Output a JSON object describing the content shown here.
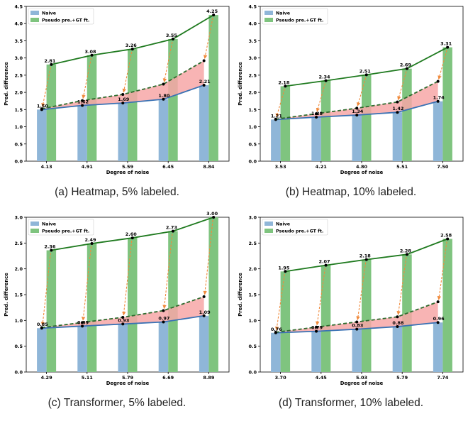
{
  "colors": {
    "naive_bar": "#8fb6d8",
    "pseudo_bar": "#7fc47f",
    "naive_line": "#3a72b4",
    "pseudo_line": "#1f7a1f",
    "dashed_line": "#2e6b2e",
    "gap_fill": "#f7a7a7",
    "arrow": "#f08a3c"
  },
  "chart_data": [
    {
      "type": "bar",
      "caption": "(a) Heatmap, 5% labeled.",
      "xlabel": "Degree of noise",
      "ylabel": "Pred. difference",
      "ylim": [
        0,
        4.5
      ],
      "yticks": [
        "0.0",
        "0.5",
        "1.0",
        "1.5",
        "2.0",
        "2.5",
        "3.0",
        "3.5",
        "4.0",
        "4.5"
      ],
      "categories": [
        "4.13",
        "4.91",
        "5.59",
        "6.45",
        "8.84"
      ],
      "legend_position": "top-left",
      "series": [
        {
          "name": "Naive",
          "values": [
            1.5,
            1.62,
            1.69,
            1.8,
            2.21
          ],
          "labels": [
            "1.50",
            "1.62",
            "1.69",
            "1.80",
            "2.21"
          ]
        },
        {
          "name": "Pseudo pre.+GT ft.",
          "values": [
            2.81,
            3.08,
            3.26,
            3.55,
            4.25
          ],
          "labels": [
            "2.81",
            "3.08",
            "3.26",
            "3.55",
            "4.25"
          ]
        }
      ],
      "dashed_values": [
        1.52,
        1.76,
        1.94,
        2.24,
        2.92
      ]
    },
    {
      "type": "bar",
      "caption": "(b) Heatmap, 10% labeled.",
      "xlabel": "Degree of noise",
      "ylabel": "Pred. difference",
      "ylim": [
        0,
        4.5
      ],
      "yticks": [
        "0.0",
        "0.5",
        "1.0",
        "1.5",
        "2.0",
        "2.5",
        "3.0",
        "3.5",
        "4.0",
        "4.5"
      ],
      "categories": [
        "3.53",
        "4.21",
        "4.80",
        "5.51",
        "7.50"
      ],
      "legend_position": "top-left",
      "series": [
        {
          "name": "Naive",
          "values": [
            1.21,
            1.28,
            1.34,
            1.42,
            1.74
          ],
          "labels": [
            "1.21",
            "1.28",
            "1.34",
            "1.42",
            "1.74"
          ]
        },
        {
          "name": "Pseudo pre.+GT ft.",
          "values": [
            2.18,
            2.34,
            2.51,
            2.69,
            3.31
          ],
          "labels": [
            "2.18",
            "2.34",
            "2.51",
            "2.69",
            "3.31"
          ]
        }
      ],
      "dashed_values": [
        1.22,
        1.38,
        1.54,
        1.72,
        2.32
      ]
    },
    {
      "type": "bar",
      "caption": "(c) Transformer, 5% labeled.",
      "xlabel": "Degree of noise",
      "ylabel": "Pred. difference",
      "ylim": [
        0,
        3.0
      ],
      "yticks": [
        "0.0",
        "0.5",
        "1.0",
        "1.5",
        "2.0",
        "2.5",
        "3.0"
      ],
      "categories": [
        "4.29",
        "5.11",
        "5.79",
        "6.69",
        "8.89"
      ],
      "legend_position": "top-left",
      "series": [
        {
          "name": "Naive",
          "values": [
            0.85,
            0.89,
            0.93,
            0.97,
            1.09
          ],
          "labels": [
            "0.85",
            "0.89",
            "0.93",
            "0.97",
            "1.09"
          ]
        },
        {
          "name": "Pseudo pre.+GT ft.",
          "values": [
            2.36,
            2.49,
            2.6,
            2.73,
            3.0
          ],
          "labels": [
            "2.36",
            "2.49",
            "2.60",
            "2.73",
            "3.00"
          ]
        }
      ],
      "dashed_values": [
        0.86,
        0.96,
        1.06,
        1.19,
        1.46
      ]
    },
    {
      "type": "bar",
      "caption": "(d) Transformer, 10% labeled.",
      "xlabel": "Degree of noise",
      "ylabel": "Pred. difference",
      "ylim": [
        0,
        3.0
      ],
      "yticks": [
        "0.0",
        "0.5",
        "1.0",
        "1.5",
        "2.0",
        "2.5",
        "3.0"
      ],
      "categories": [
        "3.70",
        "4.45",
        "5.03",
        "5.79",
        "7.74"
      ],
      "legend_position": "top-left",
      "series": [
        {
          "name": "Naive",
          "values": [
            0.76,
            0.79,
            0.83,
            0.88,
            0.96
          ],
          "labels": [
            "0.76",
            "0.79",
            "0.83",
            "0.88",
            "0.96"
          ]
        },
        {
          "name": "Pseudo pre.+GT ft.",
          "values": [
            1.95,
            2.07,
            2.18,
            2.28,
            2.58
          ],
          "labels": [
            "1.95",
            "2.07",
            "2.18",
            "2.28",
            "2.58"
          ]
        }
      ],
      "dashed_values": [
        0.77,
        0.87,
        0.97,
        1.07,
        1.36
      ]
    }
  ]
}
